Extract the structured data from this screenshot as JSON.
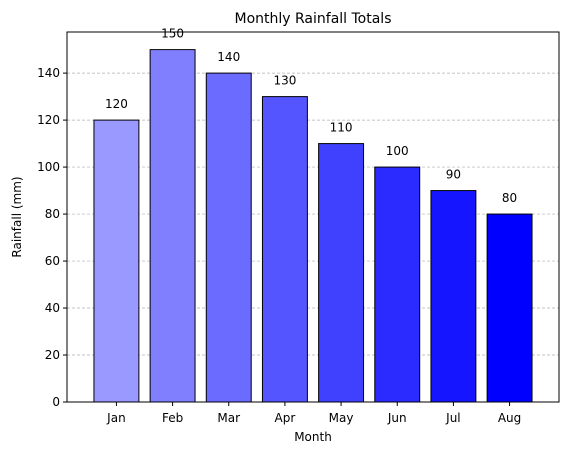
{
  "chart_data": {
    "type": "bar",
    "title": "Monthly Rainfall Totals",
    "xlabel": "Month",
    "ylabel": "Rainfall (mm)",
    "categories": [
      "Jan",
      "Feb",
      "Mar",
      "Apr",
      "May",
      "Jun",
      "Jul",
      "Aug"
    ],
    "values": [
      120,
      150,
      140,
      130,
      110,
      100,
      90,
      80
    ],
    "data_labels": [
      "120",
      "150",
      "140",
      "130",
      "110",
      "100",
      "90",
      "80"
    ],
    "bar_colors": [
      "#9999ff",
      "#8080ff",
      "#6b6bff",
      "#5555ff",
      "#4040ff",
      "#2b2bff",
      "#1515ff",
      "#0000ff"
    ],
    "bar_edge_color": "#000000",
    "ylim": [
      0,
      157.5
    ],
    "yticks": [
      0,
      20,
      40,
      60,
      80,
      100,
      120,
      140
    ],
    "grid": "y-axis dashed",
    "legend": "none"
  }
}
